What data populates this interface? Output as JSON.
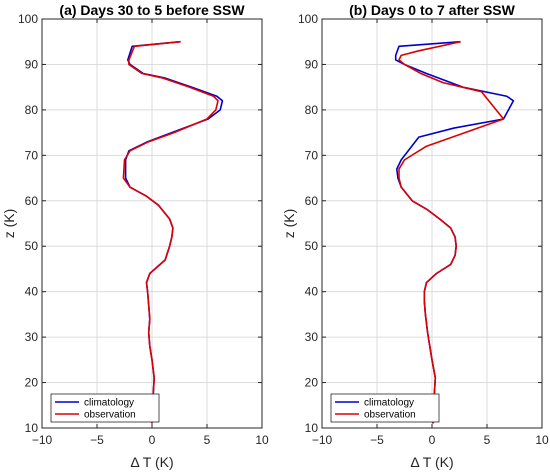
{
  "chart_data": [
    {
      "type": "line",
      "title": "(a) Days 30 to 5 before SSW",
      "xlabel": "Δ T (K)",
      "ylabel": "z (K)",
      "xlim": [
        -10,
        10
      ],
      "ylim": [
        10,
        100
      ],
      "xticks": [
        "−10",
        "−5",
        "0",
        "5",
        "10"
      ],
      "yticks": [
        "10",
        "20",
        "30",
        "40",
        "50",
        "60",
        "70",
        "80",
        "90",
        "100"
      ],
      "grid": true,
      "legend_position": "bottom-left",
      "series": [
        {
          "name": "climatology",
          "color": "#0000cc",
          "x": [
            0.0,
            -0.1,
            0.1,
            0.2,
            0.0,
            -0.2,
            -0.3,
            -0.2,
            -0.3,
            -0.4,
            -0.5,
            -0.2,
            1.2,
            1.6,
            1.8,
            1.9,
            1.6,
            0.6,
            -0.5,
            -2.0,
            -2.4,
            -2.4,
            -2.1,
            -0.4,
            1.8,
            5.1,
            6.2,
            6.4,
            5.9,
            3.6,
            1.2,
            -0.8,
            -2.0,
            -2.2,
            -1.8,
            2.6
          ],
          "y": [
            11,
            13,
            17,
            21,
            25,
            28,
            31,
            34,
            37,
            40,
            42,
            44,
            47,
            50,
            52,
            54,
            56,
            59,
            61,
            63,
            65,
            69,
            71,
            73,
            75,
            78,
            80,
            82,
            83,
            85,
            87,
            88,
            90,
            91,
            94,
            95
          ]
        },
        {
          "name": "observation",
          "color": "#dd0000",
          "x": [
            0.0,
            -0.1,
            0.1,
            0.2,
            0.0,
            -0.2,
            -0.3,
            -0.2,
            -0.3,
            -0.4,
            -0.5,
            -0.2,
            1.2,
            1.6,
            1.8,
            1.9,
            1.6,
            0.6,
            -0.5,
            -2.0,
            -2.6,
            -2.5,
            -2.0,
            -0.3,
            2.0,
            5.0,
            5.8,
            6.0,
            5.6,
            3.4,
            1.0,
            -0.9,
            -2.1,
            -2.1,
            -1.6,
            2.6
          ],
          "y": [
            11,
            13,
            17,
            21,
            25,
            28,
            31,
            34,
            37,
            40,
            42,
            44,
            47,
            50,
            52,
            54,
            56,
            59,
            61,
            63,
            65,
            69,
            71,
            73,
            75,
            78,
            80,
            82,
            83,
            85,
            87,
            88,
            90,
            91,
            94,
            95
          ]
        }
      ]
    },
    {
      "type": "line",
      "title": "(b) Days 0 to 7 after SSW",
      "xlabel": "Δ T (K)",
      "ylabel": "z (K)",
      "xlim": [
        -10,
        10
      ],
      "ylim": [
        10,
        100
      ],
      "xticks": [
        "−10",
        "−5",
        "0",
        "5",
        "10"
      ],
      "yticks": [
        "10",
        "20",
        "30",
        "40",
        "50",
        "60",
        "70",
        "80",
        "90",
        "100"
      ],
      "grid": true,
      "legend_position": "bottom-left",
      "series": [
        {
          "name": "climatology",
          "color": "#0000cc",
          "x": [
            0.1,
            0.0,
            0.2,
            0.3,
            0.0,
            -0.2,
            -0.4,
            -0.6,
            -0.7,
            -0.7,
            -0.5,
            0.4,
            1.7,
            2.1,
            2.2,
            2.1,
            1.7,
            0.7,
            -0.4,
            -1.8,
            -2.8,
            -3.1,
            -3.2,
            -2.8,
            -1.2,
            2.0,
            6.5,
            7.4,
            6.8,
            2.8,
            -0.5,
            -2.5,
            -3.3,
            -3.3,
            -3.0,
            2.6
          ],
          "y": [
            11,
            13,
            17,
            21,
            25,
            28,
            31,
            35,
            38,
            40,
            42,
            44,
            46,
            48,
            50,
            52,
            54,
            56,
            58,
            60,
            63,
            65,
            67,
            69,
            74,
            76,
            78,
            82,
            83,
            85,
            88,
            90,
            91,
            92,
            94,
            95
          ]
        },
        {
          "name": "observation",
          "color": "#dd0000",
          "x": [
            0.1,
            0.0,
            0.2,
            0.3,
            0.0,
            -0.2,
            -0.4,
            -0.6,
            -0.7,
            -0.7,
            -0.5,
            0.4,
            1.7,
            2.1,
            2.2,
            2.1,
            1.7,
            0.7,
            -0.4,
            -1.8,
            -2.8,
            -3.0,
            -3.0,
            -2.5,
            -0.5,
            3.0,
            6.5,
            5.5,
            4.5,
            1.0,
            -1.0,
            -2.5,
            -3.0,
            -2.8,
            -1.2,
            2.6
          ],
          "y": [
            11,
            13,
            17,
            21,
            25,
            28,
            31,
            35,
            38,
            40,
            42,
            44,
            46,
            48,
            50,
            52,
            54,
            56,
            58,
            60,
            63,
            65,
            67,
            69,
            72,
            75,
            78,
            81,
            84,
            86,
            88,
            90,
            91,
            92,
            93,
            95
          ]
        }
      ]
    }
  ]
}
